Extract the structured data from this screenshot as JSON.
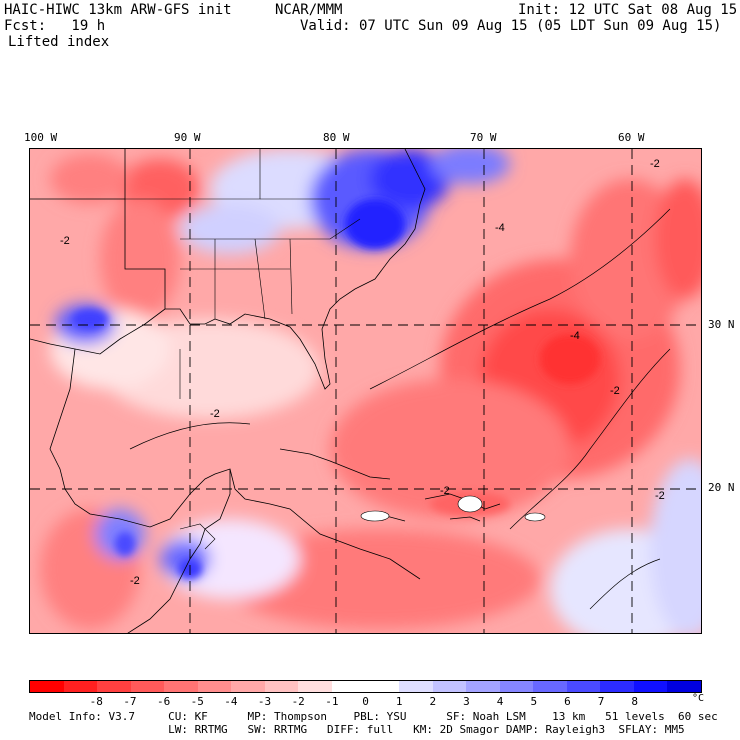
{
  "header": {
    "model": "HAIC-HIWC 13km ARW-GFS init",
    "org": "NCAR/MMM",
    "init": "Init: 12 UTC Sat 08 Aug 15",
    "fcst": "Fcst:   19 h",
    "valid": "Valid: 07 UTC Sun 09 Aug 15 (05 LDT Sun 09 Aug 15)",
    "field": "Lifted index"
  },
  "map": {
    "lon_labels": [
      "100 W",
      "90 W",
      "80 W",
      "70 W",
      "60 W"
    ],
    "lat_labels": [
      "30 N",
      "20 N"
    ],
    "contour_labels": [
      "-2",
      "-4",
      "-2",
      "-2",
      "-2",
      "-2",
      "-2",
      "-4",
      "-2"
    ]
  },
  "colorbar": {
    "colors": [
      "#ff0000",
      "#ff2020",
      "#ff4040",
      "#ff5a5a",
      "#ff7474",
      "#ff8e8e",
      "#ffa8a8",
      "#ffc2c2",
      "#ffdede",
      "#ffffff",
      "#ffffff",
      "#dedeff",
      "#c2c2ff",
      "#a4a4ff",
      "#8686ff",
      "#6868ff",
      "#4a4aff",
      "#2c2cff",
      "#1010ff",
      "#0000e0"
    ],
    "tick_labels": [
      "-8",
      "-7",
      "-6",
      "-5",
      "-4",
      "-3",
      "-2",
      "-1",
      "0",
      "1",
      "2",
      "3",
      "4",
      "5",
      "6",
      "7",
      "8"
    ],
    "unit": "°C"
  },
  "footer": {
    "line1": "Model Info: V3.7     CU: KF      MP: Thompson    PBL: YSU      SF: Noah LSM    13 km   51 levels  60 sec",
    "line2": "                     LW: RRTMG   SW: RRTMG   DIFF: full   KM: 2D Smagor DAMP: Rayleigh3  SFLAY: MM5"
  }
}
